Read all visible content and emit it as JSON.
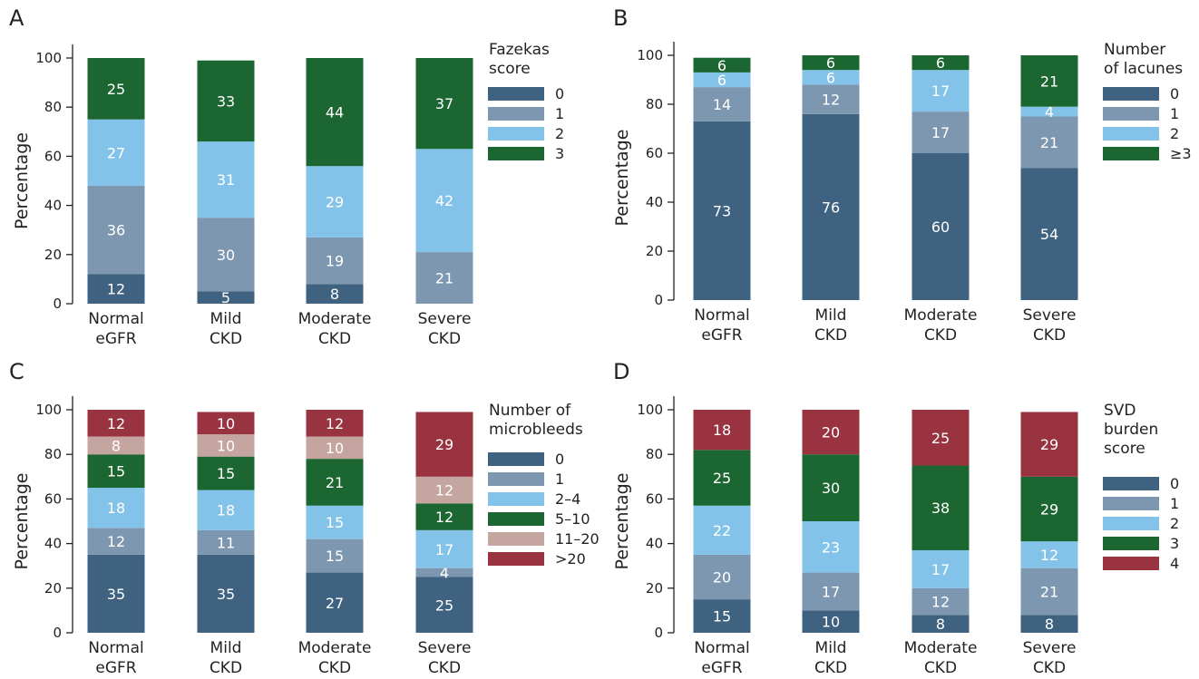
{
  "colors": {
    "dark_blue": "#3f6280",
    "gray_blue": "#7e97b0",
    "light_blue": "#83c3ea",
    "green": "#1c6632",
    "rose": "#c5a59f",
    "red": "#98333f"
  },
  "chart_data": [
    {
      "panel": "A",
      "type": "bar",
      "stacked": true,
      "categories": [
        [
          "Normal",
          "eGFR"
        ],
        [
          "Mild",
          "CKD"
        ],
        [
          "Moderate",
          "CKD"
        ],
        [
          "Severe",
          "CKD"
        ]
      ],
      "ylabel": "Percentage",
      "ylim": [
        0,
        100
      ],
      "yticks": [
        0,
        20,
        40,
        60,
        80,
        100
      ],
      "legend_title": [
        "Fazekas",
        "score"
      ],
      "legend_position": "right",
      "series": [
        {
          "name": "0",
          "color": "#3f6280",
          "values": [
            12,
            5,
            8,
            0
          ]
        },
        {
          "name": "1",
          "color": "#7e97b0",
          "values": [
            36,
            30,
            19,
            21
          ]
        },
        {
          "name": "2",
          "color": "#83c3ea",
          "values": [
            27,
            31,
            29,
            42
          ]
        },
        {
          "name": "3",
          "color": "#1c6632",
          "values": [
            25,
            33,
            44,
            37
          ]
        }
      ]
    },
    {
      "panel": "B",
      "type": "bar",
      "stacked": true,
      "categories": [
        [
          "Normal",
          "eGFR"
        ],
        [
          "Mild",
          "CKD"
        ],
        [
          "Moderate",
          "CKD"
        ],
        [
          "Severe",
          "CKD"
        ]
      ],
      "ylabel": "Percentage",
      "ylim": [
        0,
        100
      ],
      "yticks": [
        0,
        20,
        40,
        60,
        80,
        100
      ],
      "legend_title": [
        "Number",
        "of lacunes"
      ],
      "legend_position": "right",
      "series": [
        {
          "name": "0",
          "color": "#3f6280",
          "values": [
            73,
            76,
            60,
            54
          ]
        },
        {
          "name": "1",
          "color": "#7e97b0",
          "values": [
            14,
            12,
            17,
            21
          ]
        },
        {
          "name": "2",
          "color": "#83c3ea",
          "values": [
            6,
            6,
            17,
            4
          ]
        },
        {
          "name": "≥3",
          "color": "#1c6632",
          "values": [
            6,
            6,
            6,
            21
          ]
        }
      ]
    },
    {
      "panel": "C",
      "type": "bar",
      "stacked": true,
      "categories": [
        [
          "Normal",
          "eGFR"
        ],
        [
          "Mild",
          "CKD"
        ],
        [
          "Moderate",
          "CKD"
        ],
        [
          "Severe",
          "CKD"
        ]
      ],
      "ylabel": "Percentage",
      "ylim": [
        0,
        100
      ],
      "yticks": [
        0,
        20,
        40,
        60,
        80,
        100
      ],
      "legend_title": [
        "Number of",
        "microbleeds"
      ],
      "legend_position": "right",
      "series": [
        {
          "name": "0",
          "color": "#3f6280",
          "values": [
            35,
            35,
            27,
            25
          ]
        },
        {
          "name": "1",
          "color": "#7e97b0",
          "values": [
            12,
            11,
            15,
            4
          ]
        },
        {
          "name": "2–4",
          "color": "#83c3ea",
          "values": [
            18,
            18,
            15,
            17
          ]
        },
        {
          "name": "5–10",
          "color": "#1c6632",
          "values": [
            15,
            15,
            21,
            12
          ]
        },
        {
          "name": "11–20",
          "color": "#c5a59f",
          "values": [
            8,
            10,
            10,
            12
          ]
        },
        {
          "name": ">20",
          "color": "#98333f",
          "values": [
            12,
            10,
            12,
            29
          ]
        }
      ]
    },
    {
      "panel": "D",
      "type": "bar",
      "stacked": true,
      "categories": [
        [
          "Normal",
          "eGFR"
        ],
        [
          "Mild",
          "CKD"
        ],
        [
          "Moderate",
          "CKD"
        ],
        [
          "Severe",
          "CKD"
        ]
      ],
      "ylabel": "Percentage",
      "ylim": [
        0,
        100
      ],
      "yticks": [
        0,
        20,
        40,
        60,
        80,
        100
      ],
      "legend_title": [
        "SVD",
        "burden",
        "score"
      ],
      "legend_position": "right",
      "series": [
        {
          "name": "0",
          "color": "#3f6280",
          "values": [
            15,
            10,
            8,
            8
          ]
        },
        {
          "name": "1",
          "color": "#7e97b0",
          "values": [
            20,
            17,
            12,
            21
          ]
        },
        {
          "name": "2",
          "color": "#83c3ea",
          "values": [
            22,
            23,
            17,
            12
          ]
        },
        {
          "name": "3",
          "color": "#1c6632",
          "values": [
            25,
            30,
            38,
            29
          ]
        },
        {
          "name": "4",
          "color": "#98333f",
          "values": [
            18,
            20,
            25,
            29
          ]
        }
      ]
    }
  ]
}
